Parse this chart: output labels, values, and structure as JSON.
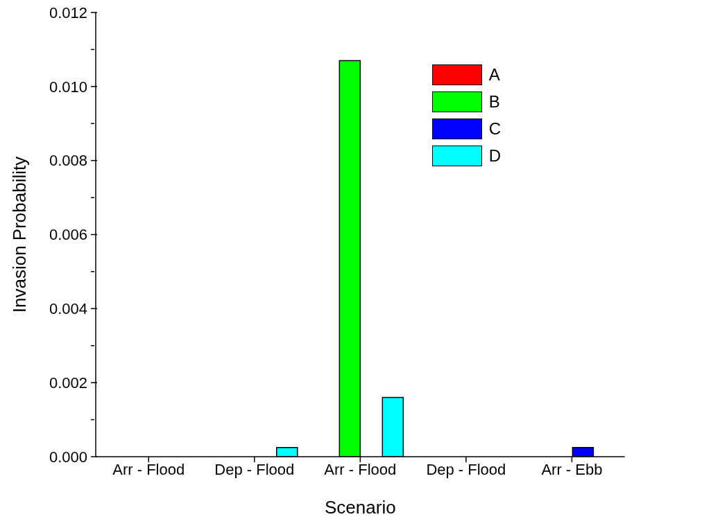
{
  "chart_data": {
    "type": "bar",
    "xlabel": "Scenario",
    "ylabel": "Invasion Probability",
    "categories": [
      "Arr - Flood",
      "Dep - Flood",
      "Arr - Flood",
      "Dep - Flood",
      "Arr - Ebb"
    ],
    "series": [
      {
        "name": "A",
        "color": "#ff0000",
        "values": [
          0,
          0,
          0,
          0,
          0
        ]
      },
      {
        "name": "B",
        "color": "#00ff00",
        "values": [
          0,
          0,
          0.0107,
          0,
          0
        ]
      },
      {
        "name": "C",
        "color": "#0000ff",
        "values": [
          0,
          0,
          0,
          0,
          0.00025
        ]
      },
      {
        "name": "D",
        "color": "#00ffff",
        "values": [
          0,
          0.00025,
          0.0016,
          0,
          0
        ]
      }
    ],
    "ylim": [
      0,
      0.012
    ],
    "yticks": [
      {
        "value": 0,
        "label": "0.000"
      },
      {
        "value": 0.001,
        "label": null
      },
      {
        "value": 0.002,
        "label": "0.002"
      },
      {
        "value": 0.003,
        "label": null
      },
      {
        "value": 0.004,
        "label": "0.004"
      },
      {
        "value": 0.005,
        "label": null
      },
      {
        "value": 0.006,
        "label": "0.006"
      },
      {
        "value": 0.007,
        "label": null
      },
      {
        "value": 0.008,
        "label": "0.008"
      },
      {
        "value": 0.009,
        "label": null
      },
      {
        "value": 0.01,
        "label": "0.010"
      },
      {
        "value": 0.011,
        "label": null
      },
      {
        "value": 0.012,
        "label": "0.012"
      }
    ],
    "legend": "top right"
  }
}
